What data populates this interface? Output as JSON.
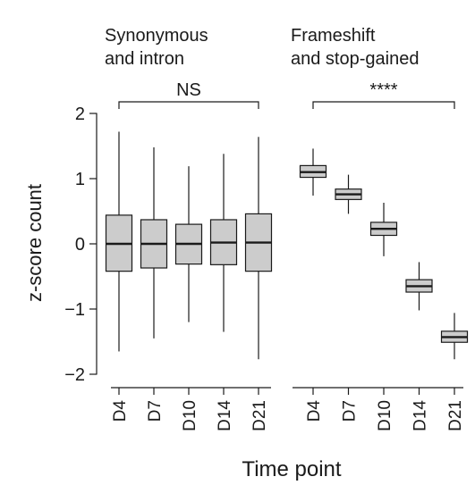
{
  "chart_data": {
    "type": "boxplot",
    "ylabel": "z-score count",
    "xlabel": "Time point",
    "ylim": [
      -2.2,
      2.4
    ],
    "yticks": [
      2,
      1,
      0,
      -1,
      -2
    ],
    "ytick_labels": [
      "2",
      "1",
      "0",
      "−1",
      "−2"
    ],
    "box_color": "#cccccc",
    "line_color": "#1a1a1a",
    "groups": [
      {
        "title_lines": [
          "Synonymous",
          "and intron"
        ],
        "significance": "NS",
        "categories": [
          "D4",
          "D7",
          "D10",
          "D14",
          "D21"
        ],
        "boxes": [
          {
            "min": -1.65,
            "q1": -0.42,
            "median": 0.0,
            "q3": 0.44,
            "max": 1.72
          },
          {
            "min": -1.45,
            "q1": -0.37,
            "median": 0.0,
            "q3": 0.37,
            "max": 1.48
          },
          {
            "min": -1.2,
            "q1": -0.31,
            "median": 0.0,
            "q3": 0.3,
            "max": 1.19
          },
          {
            "min": -1.35,
            "q1": -0.32,
            "median": 0.02,
            "q3": 0.37,
            "max": 1.38
          },
          {
            "min": -1.77,
            "q1": -0.42,
            "median": 0.02,
            "q3": 0.46,
            "max": 1.64
          }
        ]
      },
      {
        "title_lines": [
          "Frameshift",
          "and stop-gained"
        ],
        "significance": "****",
        "categories": [
          "D4",
          "D7",
          "D10",
          "D14",
          "D21"
        ],
        "boxes": [
          {
            "min": 0.74,
            "q1": 1.02,
            "median": 1.1,
            "q3": 1.2,
            "max": 1.46
          },
          {
            "min": 0.46,
            "q1": 0.68,
            "median": 0.76,
            "q3": 0.84,
            "max": 1.06
          },
          {
            "min": -0.19,
            "q1": 0.13,
            "median": 0.23,
            "q3": 0.33,
            "max": 0.63
          },
          {
            "min": -1.02,
            "q1": -0.74,
            "median": -0.65,
            "q3": -0.55,
            "max": -0.28
          },
          {
            "min": -1.77,
            "q1": -1.51,
            "median": -1.43,
            "q3": -1.34,
            "max": -1.06
          }
        ]
      }
    ]
  }
}
